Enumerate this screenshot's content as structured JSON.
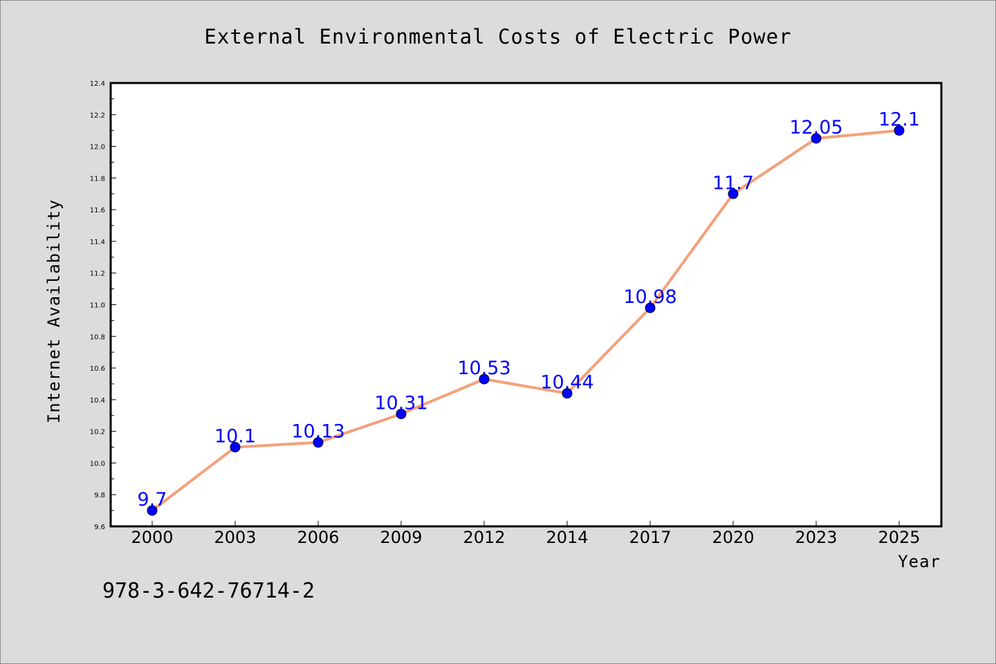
{
  "chart_data": {
    "type": "line",
    "title": "External Environmental Costs of Electric Power",
    "xlabel": "Year",
    "ylabel": "Internet Availability",
    "categories": [
      "2000",
      "2003",
      "2006",
      "2009",
      "2012",
      "2014",
      "2017",
      "2020",
      "2023",
      "2025"
    ],
    "values": [
      9.7,
      10.1,
      10.13,
      10.31,
      10.53,
      10.44,
      10.98,
      11.7,
      12.05,
      12.1
    ],
    "data_labels": [
      "9.7",
      "10.1",
      "10.13",
      "10.31",
      "10.53",
      "10.44",
      "10.98",
      "11.7",
      "12.05",
      "12.1"
    ],
    "ylim": [
      9.6,
      12.4
    ],
    "yticks": [
      "9.6",
      "9.8",
      "10.0",
      "10.2",
      "10.4",
      "10.6",
      "10.8",
      "11.0",
      "11.2",
      "11.4",
      "11.6",
      "11.8",
      "12.0",
      "12.2",
      "12.4"
    ],
    "grid": false,
    "line_color": "#f4a07a",
    "marker_color": "#0000ff",
    "label_color": "#0000ff"
  },
  "footer_text": "978-3-642-76714-2"
}
